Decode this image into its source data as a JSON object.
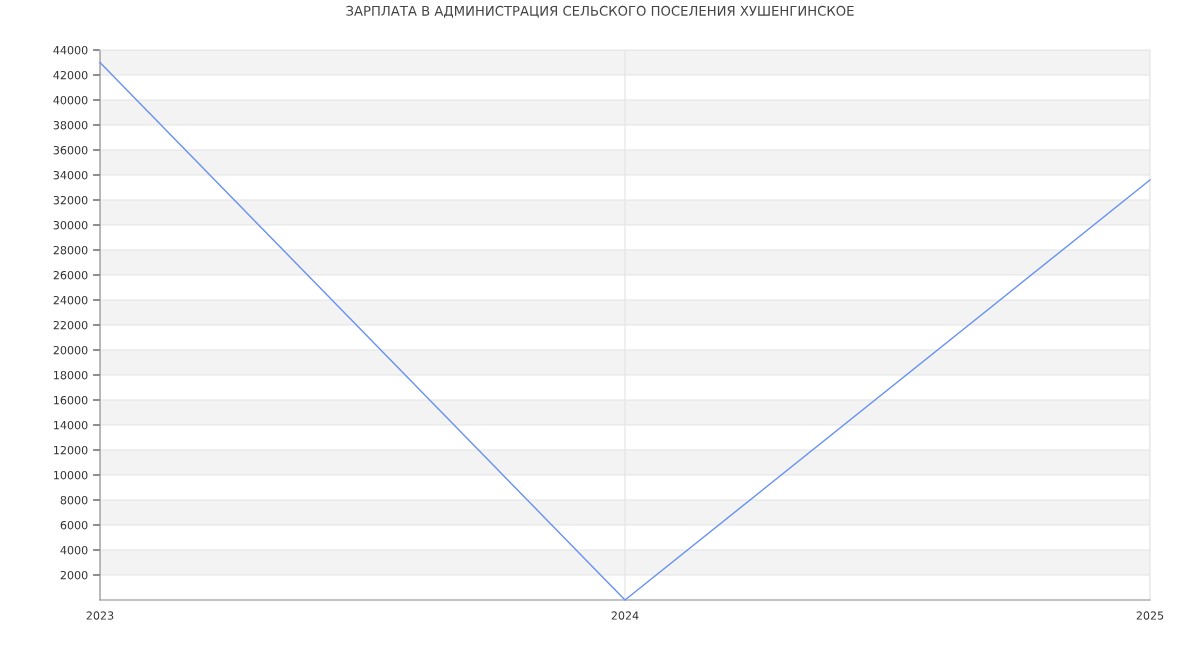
{
  "chart_data": {
    "type": "line",
    "title": "ЗАРПЛАТА В АДМИНИСТРАЦИЯ СЕЛЬСКОГО ПОСЕЛЕНИЯ ХУШЕНГИНСКОЕ",
    "x": [
      2023,
      2024,
      2025
    ],
    "series": [
      {
        "color": "#6690f5",
        "values": [
          43000,
          0,
          33600
        ]
      }
    ],
    "xlim": [
      2023,
      2025
    ],
    "xticks": [
      2023,
      2024,
      2025
    ],
    "ylim": [
      0,
      44000
    ],
    "yticks": [
      2000,
      4000,
      6000,
      8000,
      10000,
      12000,
      14000,
      16000,
      18000,
      20000,
      22000,
      24000,
      26000,
      28000,
      30000,
      32000,
      34000,
      36000,
      38000,
      40000,
      42000,
      44000
    ],
    "grid": true,
    "marker": "none",
    "line_style": "solid"
  }
}
